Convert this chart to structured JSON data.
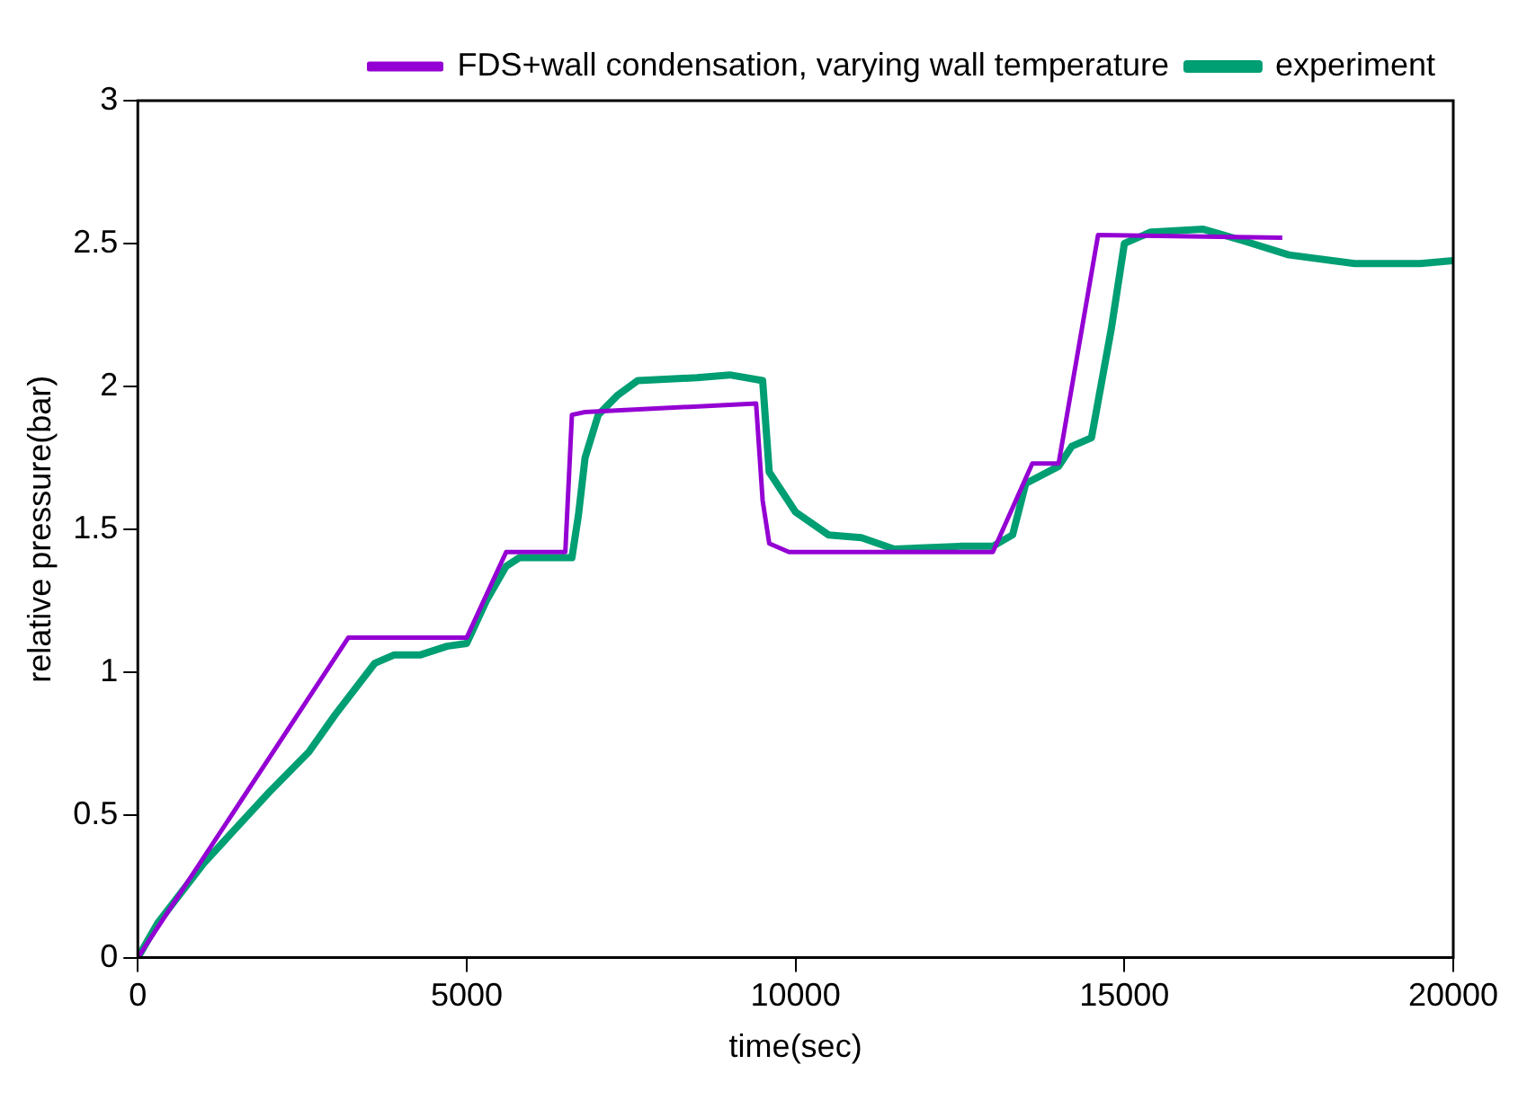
{
  "chart_data": {
    "type": "line",
    "xlabel": "time(sec)",
    "ylabel": "relative pressure(bar)",
    "xlim": [
      0,
      20000
    ],
    "xticks": [
      0,
      5000,
      10000,
      15000,
      20000
    ],
    "ylim": [
      0,
      3
    ],
    "yticks": [
      0,
      0.5,
      1,
      1.5,
      2,
      2.5,
      3
    ],
    "grid": false,
    "legend": "top right",
    "marker": "none",
    "line_style": "solid",
    "series": [
      {
        "name": "FDS+wall condensation, varying wall temperature",
        "color": "#9400d3",
        "x": [
          0,
          3200,
          5000,
          5600,
          6500,
          6600,
          6800,
          9400,
          9500,
          9600,
          9900,
          13000,
          13600,
          14000,
          14600,
          17400
        ],
        "values": [
          0,
          1.12,
          1.12,
          1.42,
          1.42,
          1.9,
          1.91,
          1.94,
          1.6,
          1.45,
          1.42,
          1.42,
          1.73,
          1.73,
          2.53,
          2.52
        ]
      },
      {
        "name": "experiment",
        "color": "#009e73",
        "x": [
          0,
          300,
          1000,
          2000,
          2600,
          3000,
          3600,
          3900,
          4300,
          4700,
          5000,
          5300,
          5600,
          5800,
          6600,
          6700,
          6800,
          7000,
          7300,
          7600,
          8500,
          9000,
          9500,
          9600,
          10000,
          10500,
          11000,
          11500,
          12500,
          13000,
          13300,
          13500,
          14000,
          14200,
          14500,
          14800,
          15000,
          15400,
          16200,
          16800,
          17500,
          18500,
          19500,
          20000
        ],
        "values": [
          0,
          0.12,
          0.33,
          0.58,
          0.72,
          0.85,
          1.03,
          1.06,
          1.06,
          1.09,
          1.1,
          1.25,
          1.37,
          1.4,
          1.4,
          1.55,
          1.75,
          1.9,
          1.97,
          2.02,
          2.03,
          2.04,
          2.02,
          1.7,
          1.56,
          1.48,
          1.47,
          1.43,
          1.44,
          1.44,
          1.48,
          1.66,
          1.72,
          1.79,
          1.82,
          2.2,
          2.5,
          2.54,
          2.55,
          2.51,
          2.46,
          2.43,
          2.43,
          2.44
        ]
      }
    ]
  }
}
